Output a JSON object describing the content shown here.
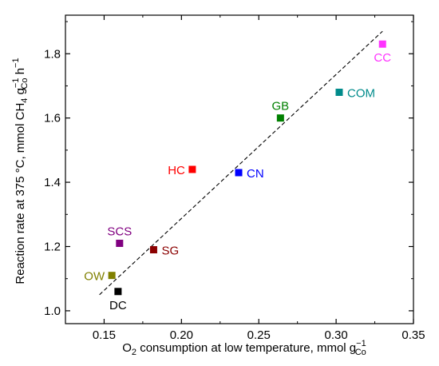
{
  "chart_data": {
    "type": "scatter",
    "xlabel": "O₂ consumption at low temperature, mmol g⁻¹",
    "xlabel_parts": {
      "main": "O",
      "sub1": "2",
      "rest": " consumption at low temperature, mmol g",
      "sup": "−1",
      "sub2": "Co"
    },
    "ylabel": "Reaction rate at 375 °C, mmol CH₄ g⁻¹ h⁻¹",
    "ylabel_parts": {
      "p1": "Reaction rate at 375 °C, mmol CH",
      "sub1": "4",
      "p2": " g",
      "sup1": "−1",
      "sub2": "Co",
      "p3": " h",
      "sup2": "−1"
    },
    "xlim": [
      0.125,
      0.35
    ],
    "ylim": [
      0.96,
      1.92
    ],
    "xticks": [
      "0.15",
      "0.20",
      "0.25",
      "0.30",
      "0.35"
    ],
    "xtick_values": [
      0.15,
      0.2,
      0.25,
      0.3,
      0.35
    ],
    "yticks": [
      "1.0",
      "1.2",
      "1.4",
      "1.6",
      "1.8"
    ],
    "ytick_values": [
      1.0,
      1.2,
      1.4,
      1.6,
      1.8
    ],
    "grid": false,
    "legend": "none",
    "trendline": {
      "style": "dashed",
      "x": [
        0.147,
        0.33
      ],
      "y": [
        1.05,
        1.87
      ]
    },
    "points": [
      {
        "label": "CC",
        "x": 0.33,
        "y": 1.83,
        "color": "#ff33ff",
        "label_pos": "below"
      },
      {
        "label": "COM",
        "x": 0.302,
        "y": 1.68,
        "color": "#008b8b",
        "label_pos": "right"
      },
      {
        "label": "GB",
        "x": 0.264,
        "y": 1.6,
        "color": "#008000",
        "label_pos": "above"
      },
      {
        "label": "CN",
        "x": 0.237,
        "y": 1.43,
        "color": "#0000ff",
        "label_pos": "right"
      },
      {
        "label": "HC",
        "x": 0.207,
        "y": 1.44,
        "color": "#ff0000",
        "label_pos": "left"
      },
      {
        "label": "SCS",
        "x": 0.16,
        "y": 1.21,
        "color": "#800080",
        "label_pos": "above"
      },
      {
        "label": "SG",
        "x": 0.182,
        "y": 1.19,
        "color": "#8b0000",
        "label_pos": "right"
      },
      {
        "label": "OW",
        "x": 0.155,
        "y": 1.11,
        "color": "#808000",
        "label_pos": "left"
      },
      {
        "label": "DC",
        "x": 0.159,
        "y": 1.06,
        "color": "#000000",
        "label_pos": "below"
      }
    ]
  }
}
